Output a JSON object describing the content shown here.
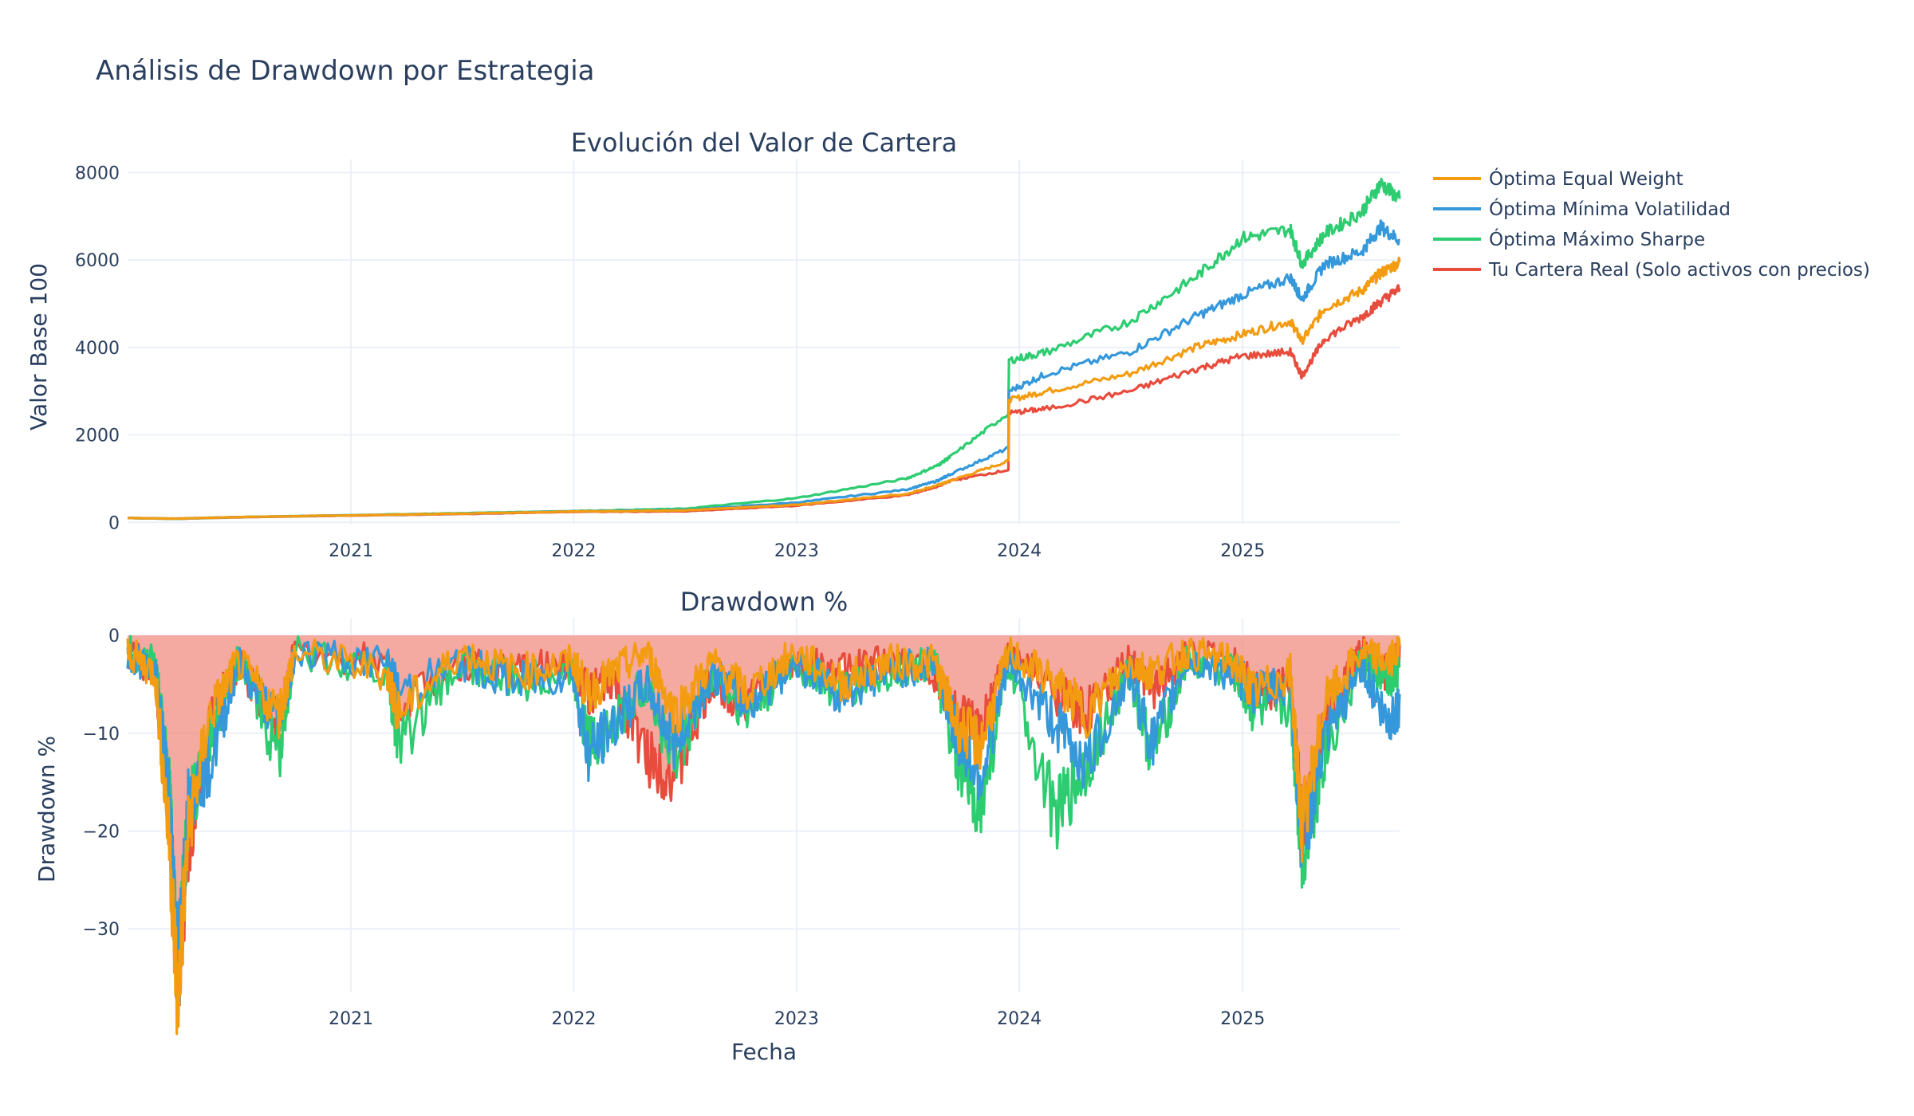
{
  "title": "Análisis de Drawdown por Estrategia",
  "colors": {
    "equal_weight": "#f39c12",
    "min_vol": "#3498db",
    "max_sharpe": "#2ecc71",
    "real": "#e74c3c",
    "fill": "#f1948a"
  },
  "legend": [
    {
      "name": "Óptima Equal Weight",
      "color": "#f39c12"
    },
    {
      "name": "Óptima Mínima Volatilidad",
      "color": "#3498db"
    },
    {
      "name": "Óptima Máximo Sharpe",
      "color": "#2ecc71"
    },
    {
      "name": "Tu Cartera Real (Solo activos con precios)",
      "color": "#e74c3c"
    }
  ],
  "chart_data": [
    {
      "type": "line",
      "title": "Evolución del Valor de Cartera",
      "xlabel": "",
      "ylabel": "Valor Base 100",
      "xlim": [
        "2020-01-01",
        "2025-09-15"
      ],
      "ylim": [
        -50,
        8300
      ],
      "x_ticks": [
        "2021",
        "2022",
        "2023",
        "2024",
        "2025"
      ],
      "y_ticks": [
        0,
        2000,
        4000,
        6000,
        8000
      ],
      "grid": true,
      "legend_position": "top-right",
      "x": [
        "2020-01-01",
        "2020-03-20",
        "2020-06-30",
        "2021-01-01",
        "2021-06-30",
        "2022-01-01",
        "2022-06-30",
        "2022-12-30",
        "2023-06-30",
        "2023-08-20",
        "2023-09-10",
        "2023-12-14",
        "2023-12-15",
        "2024-02-15",
        "2024-06-30",
        "2024-10-15",
        "2024-12-31",
        "2025-03-20",
        "2025-04-08",
        "2025-05-15",
        "2025-07-15",
        "2025-08-15",
        "2025-09-15"
      ],
      "series": [
        {
          "name": "Óptima Equal Weight",
          "values": [
            100,
            85,
            120,
            160,
            200,
            250,
            270,
            400,
            650,
            850,
            950,
            1400,
            2800,
            3000,
            3400,
            4000,
            4300,
            4600,
            4150,
            4900,
            5300,
            5700,
            5950
          ]
        },
        {
          "name": "Óptima Mínima Volatilidad",
          "values": [
            100,
            85,
            120,
            160,
            200,
            250,
            280,
            450,
            750,
            950,
            1100,
            1700,
            3000,
            3400,
            3900,
            4700,
            5200,
            5600,
            5100,
            5900,
            6200,
            6750,
            6450
          ]
        },
        {
          "name": "Óptima Máximo Sharpe",
          "values": [
            100,
            80,
            120,
            165,
            210,
            260,
            310,
            550,
            1000,
            1300,
            1500,
            2500,
            3700,
            3900,
            4600,
            5600,
            6500,
            6700,
            5900,
            6600,
            7100,
            7750,
            7400
          ]
        },
        {
          "name": "Tu Cartera Real (Solo activos con precios)",
          "values": [
            100,
            80,
            115,
            155,
            190,
            240,
            250,
            380,
            620,
            820,
            950,
            1200,
            2500,
            2600,
            3000,
            3500,
            3800,
            3900,
            3350,
            4200,
            4700,
            5050,
            5350
          ]
        }
      ]
    },
    {
      "type": "line",
      "title": "Drawdown %",
      "xlabel": "Fecha",
      "ylabel": "Drawdown %",
      "xlim": [
        "2020-01-01",
        "2025-09-15"
      ],
      "ylim": [
        -36.5,
        1.8
      ],
      "x_ticks": [
        "2021",
        "2022",
        "2023",
        "2024",
        "2025"
      ],
      "y_ticks": [
        0,
        -10,
        -20,
        -30
      ],
      "grid": true,
      "x": [
        "2020-01-01",
        "2020-02-15",
        "2020-03-10",
        "2020-03-23",
        "2020-04-10",
        "2020-05-15",
        "2020-06-30",
        "2020-09-05",
        "2020-10-01",
        "2021-03-01",
        "2021-03-20",
        "2021-06-30",
        "2021-09-30",
        "2021-12-31",
        "2022-01-25",
        "2022-03-08",
        "2022-04-30",
        "2022-06-16",
        "2022-08-15",
        "2022-10-12",
        "2022-12-30",
        "2023-03-15",
        "2023-05-30",
        "2023-08-15",
        "2023-09-20",
        "2023-10-30",
        "2023-12-15",
        "2024-03-01",
        "2024-04-20",
        "2024-06-30",
        "2024-08-05",
        "2024-09-30",
        "2024-12-18",
        "2025-01-20",
        "2025-03-20",
        "2025-04-08",
        "2025-05-15",
        "2025-07-15",
        "2025-08-25",
        "2025-09-15"
      ],
      "series": [
        {
          "name": "Óptima Equal Weight",
          "values": [
            -1,
            -3,
            -20,
            -35,
            -18,
            -7,
            -2,
            -7,
            -1,
            -3,
            -7,
            -1,
            -3,
            -2,
            -5,
            -3,
            -1,
            -7,
            -2,
            -5,
            -1,
            -4,
            -2,
            -2,
            -8,
            -10,
            -1,
            -4,
            -7,
            -2,
            -3,
            -1,
            -2,
            -5,
            -3,
            -18,
            -6,
            -1,
            -2,
            -1
          ]
        },
        {
          "name": "Óptima Mínima Volatilidad",
          "values": [
            -1,
            -3,
            -15,
            -32,
            -15,
            -12,
            -2,
            -8,
            -1,
            -2,
            -5,
            -2,
            -4,
            -3,
            -11,
            -8,
            -4,
            -10,
            -3,
            -6,
            -2,
            -5,
            -3,
            -2,
            -9,
            -13,
            -2,
            -8,
            -12,
            -3,
            -10,
            -2,
            -3,
            -5,
            -4,
            -20,
            -10,
            -2,
            -8,
            -6
          ]
        },
        {
          "name": "Óptima Máximo Sharpe",
          "values": [
            -1,
            -2,
            -15,
            -32,
            -17,
            -9,
            -2,
            -11,
            -1,
            -3,
            -10,
            -2,
            -4,
            -3,
            -10,
            -8,
            -4,
            -12,
            -3,
            -7,
            -2,
            -5,
            -3,
            -2,
            -12,
            -16,
            -2,
            -17,
            -12,
            -3,
            -11,
            -2,
            -3,
            -7,
            -6,
            -21,
            -11,
            -2,
            -4,
            -3
          ]
        },
        {
          "name": "Tu Cartera Real (Solo activos con precios)",
          "values": [
            -1,
            -3,
            -17,
            -33,
            -20,
            -8,
            -2,
            -8,
            -1,
            -2,
            -6,
            -2,
            -3,
            -2,
            -5,
            -4,
            -11,
            -13,
            -4,
            -6,
            -2,
            -3,
            -2,
            -3,
            -7,
            -9,
            -1,
            -5,
            -7,
            -2,
            -5,
            -1,
            -2,
            -5,
            -4,
            -18,
            -8,
            -1,
            -3,
            -1
          ]
        }
      ]
    }
  ]
}
